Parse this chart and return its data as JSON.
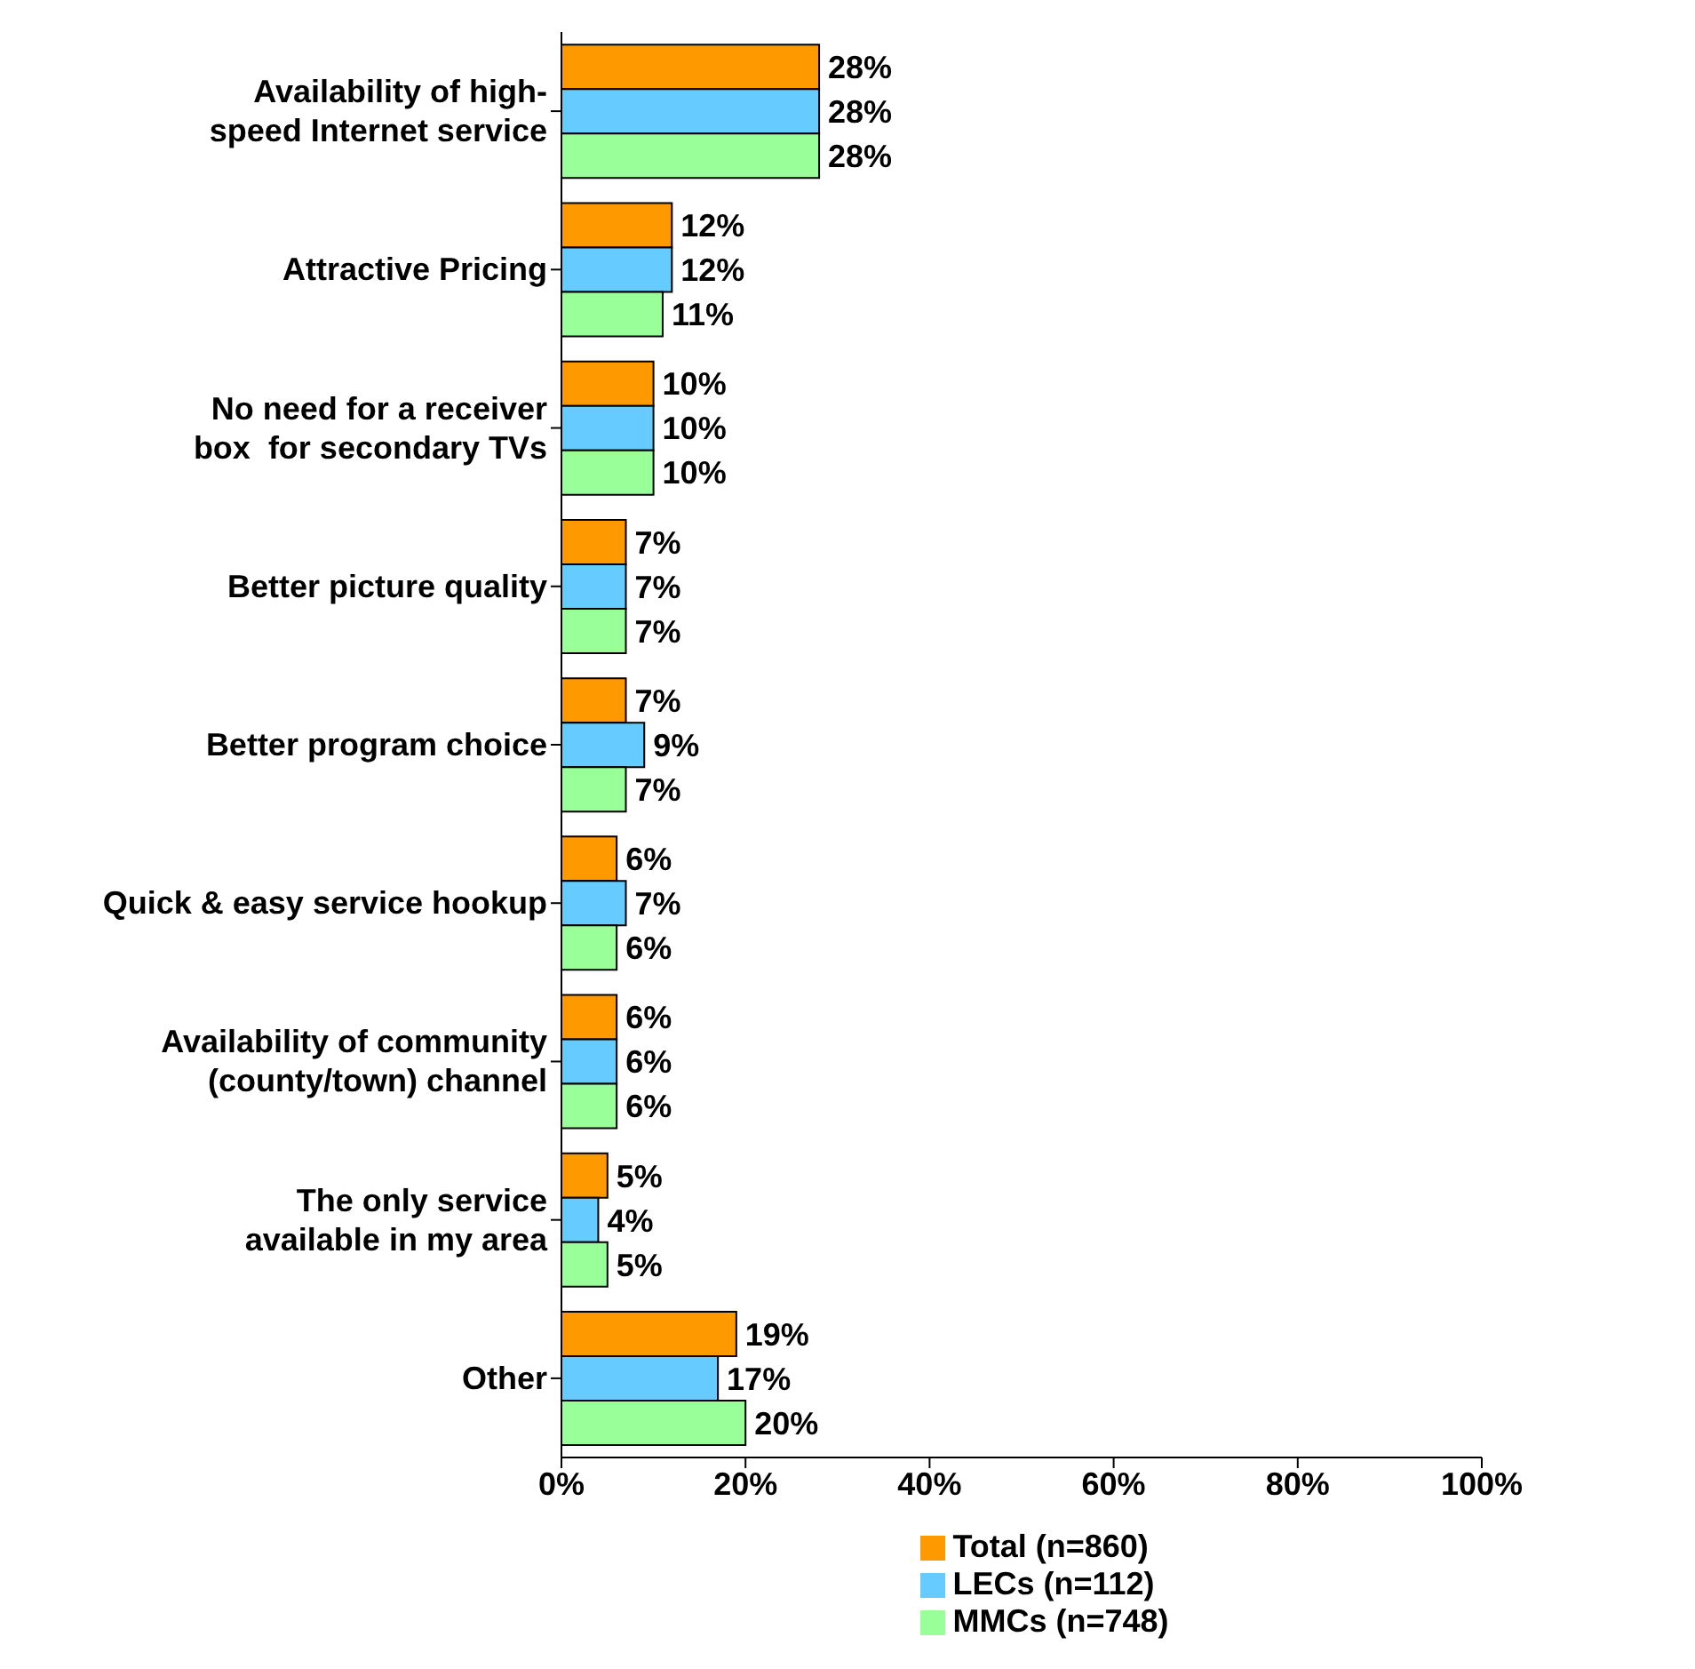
{
  "chart_data": {
    "type": "bar",
    "orientation": "horizontal",
    "categories": [
      "Availability of high-\nspeed Internet service",
      "Attractive Pricing",
      "No need for a receiver\nbox  for secondary TVs",
      "Better picture quality",
      "Better program choice",
      "Quick & easy service hookup",
      "Availability of community\n(county/town) channel",
      "The only service\navailable in my area",
      "Other"
    ],
    "series": [
      {
        "name": "Total (n=860)",
        "color": "#ff9900",
        "values": [
          28,
          12,
          10,
          7,
          7,
          6,
          6,
          5,
          19
        ],
        "value_labels": [
          "28%",
          "12%",
          "10%",
          "7%",
          "7%",
          "6%",
          "6%",
          "5%",
          "19%"
        ]
      },
      {
        "name": "LECs (n=112)",
        "color": "#66ccff",
        "values": [
          28,
          12,
          10,
          7,
          9,
          7,
          6,
          4,
          17
        ],
        "value_labels": [
          "28%",
          "12%",
          "10%",
          "7%",
          "9%",
          "7%",
          "6%",
          "4%",
          "17%"
        ]
      },
      {
        "name": "MMCs (n=748)",
        "color": "#99ff99",
        "values": [
          28,
          11,
          10,
          7,
          7,
          6,
          6,
          5,
          20
        ],
        "value_labels": [
          "28%",
          "11%",
          "10%",
          "7%",
          "7%",
          "6%",
          "6%",
          "5%",
          "20%"
        ]
      }
    ],
    "xlim": [
      0,
      100
    ],
    "xticks": [
      {
        "value": 0,
        "label": "0%"
      },
      {
        "value": 20,
        "label": "20%"
      },
      {
        "value": 40,
        "label": "40%"
      },
      {
        "value": 60,
        "label": "60%"
      },
      {
        "value": 80,
        "label": "80%"
      },
      {
        "value": 100,
        "label": "100%"
      }
    ],
    "grid": false,
    "legend": "bottom"
  }
}
